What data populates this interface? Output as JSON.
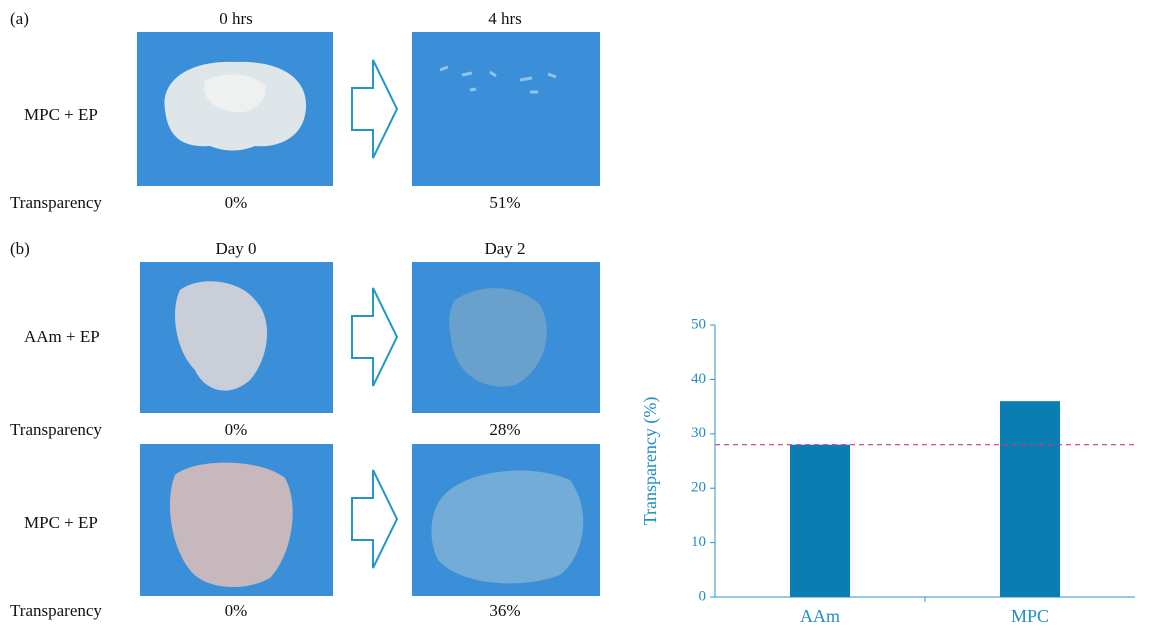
{
  "panels": [
    {
      "label": "(a)",
      "columns": [
        "0 hrs",
        "4 hrs"
      ],
      "rows": [
        {
          "label": "MPC + EP",
          "metric": "Transparency",
          "values": [
            "0%",
            "51%"
          ]
        }
      ]
    },
    {
      "label": "(b)",
      "columns": [
        "Day 0",
        "Day 2"
      ],
      "rows": [
        {
          "label": "AAm + EP",
          "metric": "Transparency",
          "values": [
            "0%",
            "28%"
          ]
        },
        {
          "label": "MPC + EP",
          "metric": "Transparency",
          "values": [
            "0%",
            "36%"
          ]
        }
      ]
    }
  ],
  "chart_data": {
    "type": "bar",
    "y_label": "Transparency  (%)",
    "categories": [
      "AAm",
      "MPC"
    ],
    "values": [
      28,
      36
    ],
    "color": "#0a7db2",
    "ylim": [
      0,
      50
    ],
    "yticks": [
      0,
      10,
      20,
      30,
      40,
      50
    ],
    "reference_line": 28,
    "reference_color": "#d8327e"
  }
}
